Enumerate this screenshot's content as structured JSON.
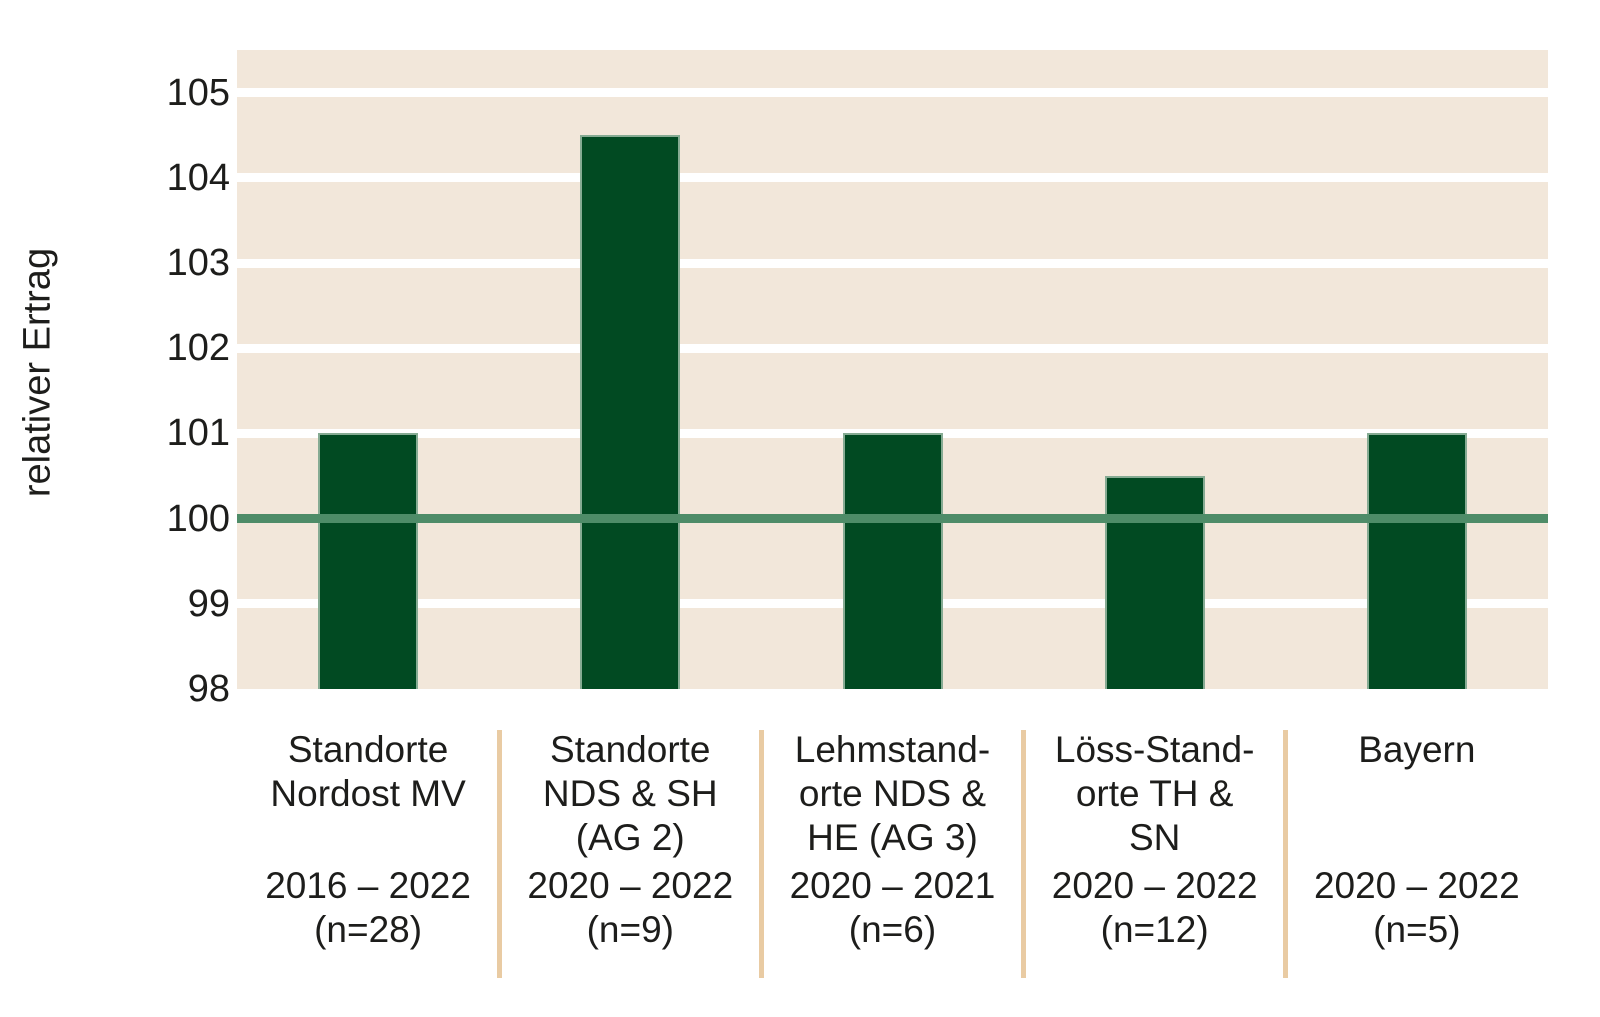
{
  "chart_data": {
    "type": "bar",
    "title": "",
    "ylabel": "relativer Ertrag",
    "xlabel": "",
    "ylim": [
      98,
      105.5
    ],
    "yticks": [
      105,
      104,
      103,
      102,
      101,
      100,
      99,
      98
    ],
    "reference_line_value": 100,
    "grid": "horizontal white stripes on beige plot background",
    "legend": "none",
    "categories": [
      {
        "name_lines": [
          "Standorte",
          "Nordost MV"
        ],
        "period": "2016 – 2022",
        "n_label": "(n=28)"
      },
      {
        "name_lines": [
          "Standorte",
          "NDS & SH",
          "(AG 2)"
        ],
        "period": "2020 – 2022",
        "n_label": "(n=9)"
      },
      {
        "name_lines": [
          "Lehmstand-",
          "orte NDS &",
          "HE (AG 3)"
        ],
        "period": "2020 – 2021",
        "n_label": "(n=6)"
      },
      {
        "name_lines": [
          "Löss-Stand-",
          "orte TH &",
          "SN"
        ],
        "period": "2020 – 2022",
        "n_label": "(n=12)"
      },
      {
        "name_lines": [
          "Bayern"
        ],
        "period": "2020 – 2022",
        "n_label": "(n=5)"
      }
    ],
    "values": [
      101,
      104.5,
      101,
      100.5,
      101
    ],
    "colors": {
      "bar": "#014a22",
      "bar_edge": "#86ab93",
      "reference_line": "#4e8c68",
      "plot_background": "#f2e7da",
      "gridline": "#ffffff",
      "category_separator": "#e9cba3",
      "text": "#1d1d1b",
      "page_background": "#ffffff"
    }
  }
}
